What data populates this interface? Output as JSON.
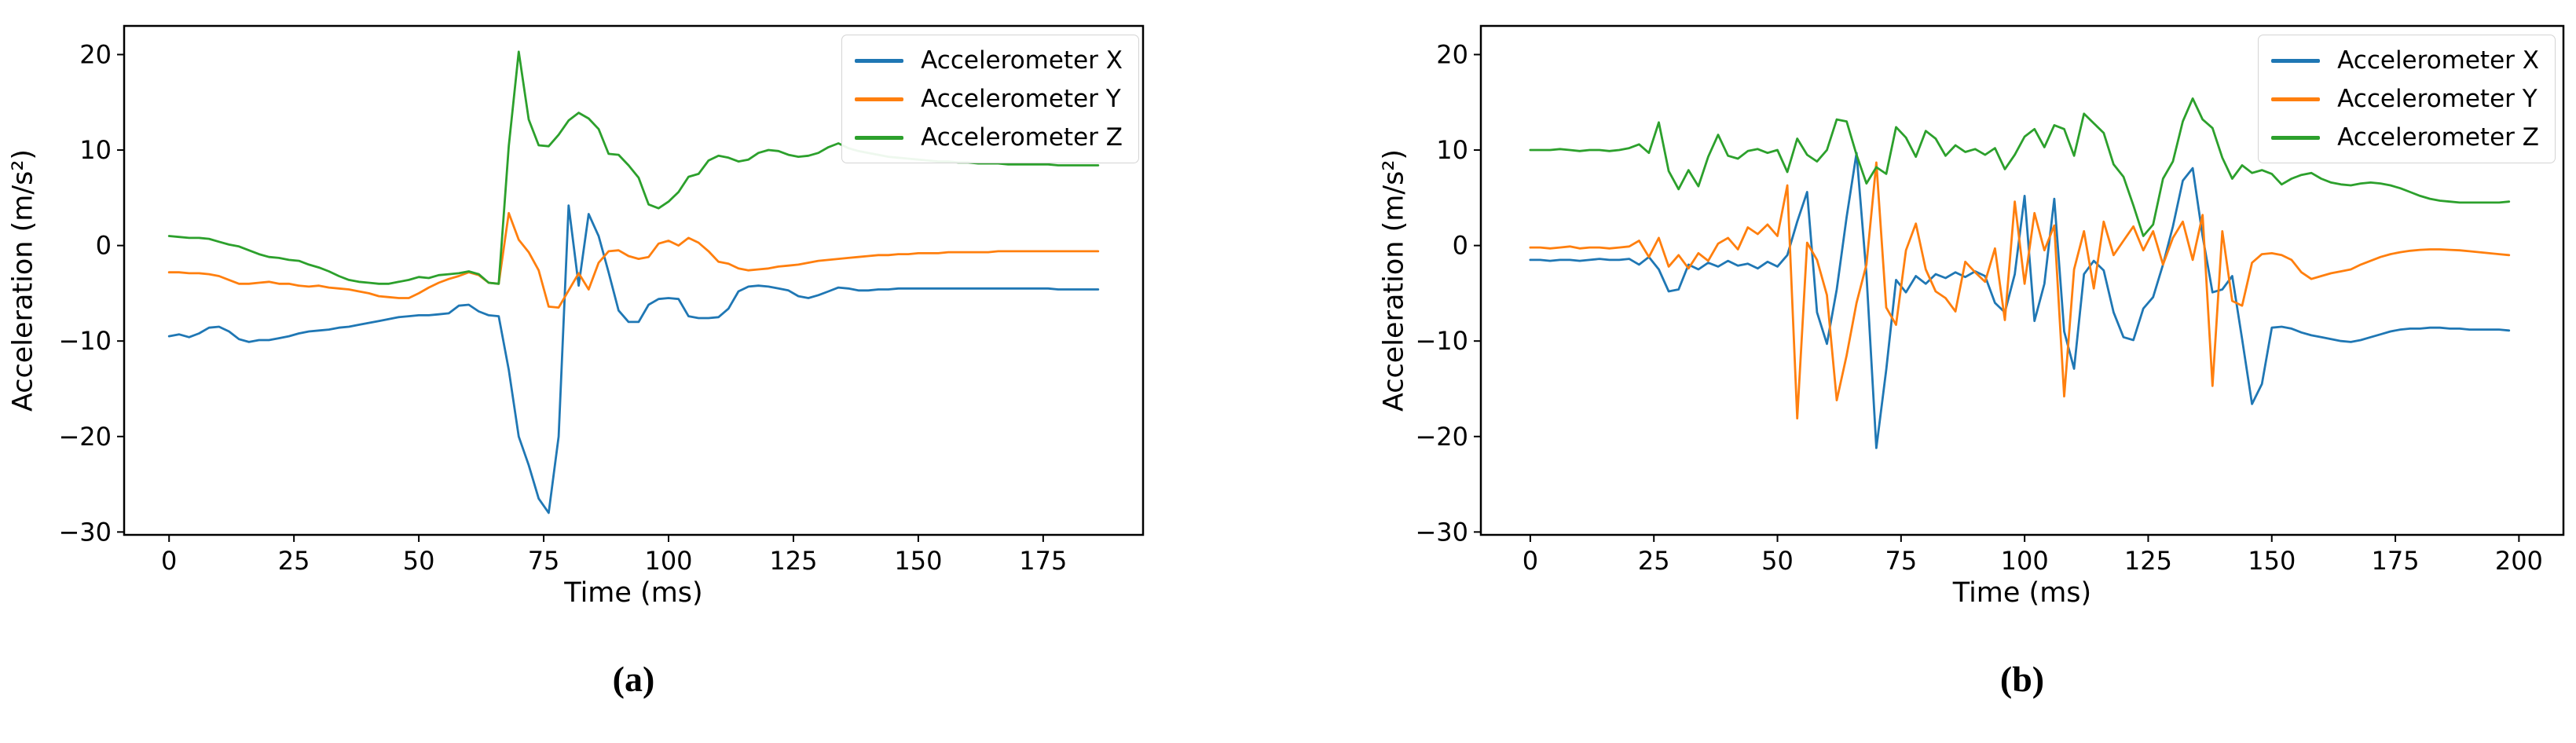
{
  "figure": {
    "background": "#ffffff",
    "text_color": "#000000",
    "series_colors": {
      "x": "#1f77b4",
      "y": "#ff7f0e",
      "z": "#2ca02c"
    }
  },
  "chart_data": [
    {
      "id": "a",
      "type": "line",
      "caption": "(a)",
      "xlabel": "Time (ms)",
      "ylabel": "Acceleration (m/s²)",
      "xlim": [
        -9,
        195
      ],
      "ylim": [
        -30.3,
        23
      ],
      "xticks": [
        0,
        25,
        50,
        75,
        100,
        125,
        150,
        175
      ],
      "yticks": [
        -30,
        -20,
        -10,
        0,
        10,
        20
      ],
      "grid": false,
      "legend_position": "upper right",
      "x": [
        0,
        2,
        4,
        6,
        8,
        10,
        12,
        14,
        16,
        18,
        20,
        22,
        24,
        26,
        28,
        30,
        32,
        34,
        36,
        38,
        40,
        42,
        44,
        46,
        48,
        50,
        52,
        54,
        56,
        58,
        60,
        62,
        64,
        66,
        68,
        70,
        72,
        74,
        76,
        78,
        80,
        82,
        84,
        86,
        88,
        90,
        92,
        94,
        96,
        98,
        100,
        102,
        104,
        106,
        108,
        110,
        112,
        114,
        116,
        118,
        120,
        122,
        124,
        126,
        128,
        130,
        132,
        134,
        136,
        138,
        140,
        142,
        144,
        146,
        148,
        150,
        152,
        154,
        156,
        158,
        160,
        162,
        164,
        166,
        168,
        170,
        172,
        174,
        176,
        178,
        180,
        182,
        184,
        186
      ],
      "series": [
        {
          "name": "Accelerometer X",
          "color": "#1f77b4",
          "values": [
            -9.5,
            -9.3,
            -9.6,
            -9.2,
            -8.6,
            -8.5,
            -9.0,
            -9.8,
            -10.1,
            -9.9,
            -9.9,
            -9.7,
            -9.5,
            -9.2,
            -9.0,
            -8.9,
            -8.8,
            -8.6,
            -8.5,
            -8.3,
            -8.1,
            -7.9,
            -7.7,
            -7.5,
            -7.4,
            -7.3,
            -7.3,
            -7.2,
            -7.1,
            -6.3,
            -6.2,
            -6.9,
            -7.3,
            -7.4,
            -13.0,
            -20.0,
            -23.0,
            -26.5,
            -28.0,
            -20.0,
            4.2,
            -4.2,
            3.3,
            1.0,
            -2.8,
            -6.8,
            -8.0,
            -8.0,
            -6.2,
            -5.6,
            -5.5,
            -5.6,
            -7.4,
            -7.6,
            -7.6,
            -7.5,
            -6.6,
            -4.8,
            -4.3,
            -4.2,
            -4.3,
            -4.5,
            -4.7,
            -5.3,
            -5.5,
            -5.2,
            -4.8,
            -4.4,
            -4.5,
            -4.7,
            -4.7,
            -4.6,
            -4.6,
            -4.5,
            -4.5,
            -4.5,
            -4.5,
            -4.5,
            -4.5,
            -4.5,
            -4.5,
            -4.5,
            -4.5,
            -4.5,
            -4.5,
            -4.5,
            -4.5,
            -4.5,
            -4.5,
            -4.6,
            -4.6,
            -4.6,
            -4.6,
            -4.6
          ]
        },
        {
          "name": "Accelerometer Y",
          "color": "#ff7f0e",
          "values": [
            -2.8,
            -2.8,
            -2.9,
            -2.9,
            -3.0,
            -3.2,
            -3.6,
            -4.0,
            -4.0,
            -3.9,
            -3.8,
            -4.0,
            -4.0,
            -4.2,
            -4.3,
            -4.2,
            -4.4,
            -4.5,
            -4.6,
            -4.8,
            -5.0,
            -5.3,
            -5.4,
            -5.5,
            -5.5,
            -5.0,
            -4.4,
            -3.9,
            -3.5,
            -3.2,
            -2.8,
            -3.1,
            -3.9,
            -4.0,
            3.4,
            0.6,
            -0.7,
            -2.6,
            -6.4,
            -6.5,
            -4.7,
            -2.9,
            -4.6,
            -1.8,
            -0.6,
            -0.5,
            -1.1,
            -1.4,
            -1.2,
            0.2,
            0.5,
            0.0,
            0.8,
            0.3,
            -0.6,
            -1.7,
            -1.9,
            -2.4,
            -2.6,
            -2.5,
            -2.4,
            -2.2,
            -2.1,
            -2.0,
            -1.8,
            -1.6,
            -1.5,
            -1.4,
            -1.3,
            -1.2,
            -1.1,
            -1.0,
            -1.0,
            -0.9,
            -0.9,
            -0.8,
            -0.8,
            -0.8,
            -0.7,
            -0.7,
            -0.7,
            -0.7,
            -0.7,
            -0.6,
            -0.6,
            -0.6,
            -0.6,
            -0.6,
            -0.6,
            -0.6,
            -0.6,
            -0.6,
            -0.6,
            -0.6
          ]
        },
        {
          "name": "Accelerometer Z",
          "color": "#2ca02c",
          "values": [
            1.0,
            0.9,
            0.8,
            0.8,
            0.7,
            0.4,
            0.1,
            -0.1,
            -0.5,
            -0.9,
            -1.2,
            -1.3,
            -1.5,
            -1.6,
            -2.0,
            -2.3,
            -2.7,
            -3.2,
            -3.6,
            -3.8,
            -3.9,
            -4.0,
            -4.0,
            -3.8,
            -3.6,
            -3.3,
            -3.4,
            -3.1,
            -3.0,
            -2.9,
            -2.7,
            -3.0,
            -3.9,
            -4.0,
            10.4,
            20.3,
            13.2,
            10.5,
            10.4,
            11.6,
            13.1,
            13.9,
            13.3,
            12.2,
            9.6,
            9.5,
            8.4,
            7.1,
            4.3,
            3.9,
            4.6,
            5.6,
            7.2,
            7.5,
            8.9,
            9.4,
            9.2,
            8.8,
            9.0,
            9.7,
            10.0,
            9.9,
            9.5,
            9.3,
            9.4,
            9.7,
            10.3,
            10.7,
            10.2,
            9.9,
            9.7,
            9.5,
            9.3,
            9.2,
            9.1,
            9.0,
            8.9,
            8.8,
            8.8,
            8.7,
            8.7,
            8.6,
            8.6,
            8.6,
            8.5,
            8.5,
            8.5,
            8.5,
            8.5,
            8.4,
            8.4,
            8.4,
            8.4,
            8.4
          ]
        }
      ]
    },
    {
      "id": "b",
      "type": "line",
      "caption": "(b)",
      "xlabel": "Time (ms)",
      "ylabel": "Acceleration (m/s²)",
      "xlim": [
        -10,
        209
      ],
      "ylim": [
        -30.3,
        23
      ],
      "xticks": [
        0,
        25,
        50,
        75,
        100,
        125,
        150,
        175,
        200
      ],
      "yticks": [
        -30,
        -20,
        -10,
        0,
        10,
        20
      ],
      "grid": false,
      "legend_position": "upper right",
      "x": [
        0,
        2,
        4,
        6,
        8,
        10,
        12,
        14,
        16,
        18,
        20,
        22,
        24,
        26,
        28,
        30,
        32,
        34,
        36,
        38,
        40,
        42,
        44,
        46,
        48,
        50,
        52,
        54,
        56,
        58,
        60,
        62,
        64,
        66,
        68,
        70,
        72,
        74,
        76,
        78,
        80,
        82,
        84,
        86,
        88,
        90,
        92,
        94,
        96,
        98,
        100,
        102,
        104,
        106,
        108,
        110,
        112,
        114,
        116,
        118,
        120,
        122,
        124,
        126,
        128,
        130,
        132,
        134,
        136,
        138,
        140,
        142,
        144,
        146,
        148,
        150,
        152,
        154,
        156,
        158,
        160,
        162,
        164,
        166,
        168,
        170,
        172,
        174,
        176,
        178,
        180,
        182,
        184,
        186,
        188,
        190,
        192,
        194,
        196,
        198
      ],
      "series": [
        {
          "name": "Accelerometer X",
          "color": "#1f77b4",
          "values": [
            -1.5,
            -1.5,
            -1.6,
            -1.5,
            -1.5,
            -1.6,
            -1.5,
            -1.4,
            -1.5,
            -1.5,
            -1.4,
            -2.0,
            -1.2,
            -2.5,
            -4.8,
            -4.6,
            -2.0,
            -2.5,
            -1.8,
            -2.2,
            -1.6,
            -2.1,
            -1.9,
            -2.4,
            -1.7,
            -2.2,
            -1.0,
            2.5,
            5.6,
            -7.0,
            -10.3,
            -4.6,
            3.0,
            9.7,
            -3.0,
            -21.2,
            -13.0,
            -3.6,
            -4.9,
            -3.2,
            -4.0,
            -3.0,
            -3.4,
            -2.8,
            -3.3,
            -2.7,
            -3.2,
            -6.0,
            -7.0,
            -3.0,
            5.2,
            -7.9,
            -4.0,
            4.9,
            -9.0,
            -12.9,
            -3.0,
            -1.6,
            -2.6,
            -7.0,
            -9.6,
            -9.9,
            -6.6,
            -5.4,
            -2.0,
            2.0,
            6.8,
            8.1,
            1.0,
            -4.9,
            -4.6,
            -3.2,
            -9.8,
            -16.6,
            -14.5,
            -8.6,
            -8.5,
            -8.7,
            -9.1,
            -9.4,
            -9.6,
            -9.8,
            -10.0,
            -10.1,
            -9.9,
            -9.6,
            -9.3,
            -9.0,
            -8.8,
            -8.7,
            -8.7,
            -8.6,
            -8.6,
            -8.7,
            -8.7,
            -8.8,
            -8.8,
            -8.8,
            -8.8,
            -8.9
          ]
        },
        {
          "name": "Accelerometer Y",
          "color": "#ff7f0e",
          "values": [
            -0.2,
            -0.2,
            -0.3,
            -0.2,
            -0.1,
            -0.3,
            -0.2,
            -0.2,
            -0.3,
            -0.2,
            -0.1,
            0.5,
            -1.2,
            0.8,
            -2.2,
            -1.0,
            -2.4,
            -0.8,
            -1.6,
            0.2,
            0.8,
            -0.4,
            1.9,
            1.2,
            2.2,
            1.0,
            6.3,
            -18.1,
            0.3,
            -1.5,
            -5.2,
            -16.2,
            -11.5,
            -6.0,
            -2.0,
            8.7,
            -6.5,
            -8.3,
            -0.5,
            2.3,
            -2.5,
            -4.8,
            -5.5,
            -6.9,
            -1.7,
            -2.8,
            -3.8,
            -0.3,
            -7.8,
            4.6,
            -4.0,
            3.4,
            -0.5,
            2.1,
            -15.8,
            -2.5,
            1.5,
            -4.5,
            2.5,
            -1.0,
            0.5,
            2.0,
            -0.5,
            1.5,
            -2.0,
            0.8,
            2.5,
            -1.5,
            3.2,
            -14.7,
            1.5,
            -5.8,
            -6.3,
            -1.8,
            -0.9,
            -0.8,
            -1.0,
            -1.5,
            -2.8,
            -3.5,
            -3.2,
            -2.9,
            -2.7,
            -2.5,
            -2.0,
            -1.6,
            -1.2,
            -0.9,
            -0.7,
            -0.55,
            -0.45,
            -0.4,
            -0.4,
            -0.45,
            -0.5,
            -0.6,
            -0.7,
            -0.8,
            -0.9,
            -1.0
          ]
        },
        {
          "name": "Accelerometer Z",
          "color": "#2ca02c",
          "values": [
            10.0,
            10.0,
            10.0,
            10.1,
            10.0,
            9.9,
            10.0,
            10.0,
            9.9,
            10.0,
            10.2,
            10.6,
            9.7,
            12.9,
            7.8,
            5.9,
            7.9,
            6.2,
            9.3,
            11.6,
            9.4,
            9.1,
            9.9,
            10.1,
            9.7,
            10.0,
            7.7,
            11.2,
            9.5,
            8.8,
            10.0,
            13.2,
            13.0,
            9.5,
            6.5,
            8.2,
            7.5,
            12.4,
            11.3,
            9.3,
            12.0,
            11.2,
            9.4,
            10.5,
            9.8,
            10.1,
            9.5,
            10.2,
            8.0,
            9.5,
            11.4,
            12.2,
            10.3,
            12.6,
            12.2,
            9.4,
            13.8,
            12.8,
            11.8,
            8.5,
            7.2,
            4.2,
            1.0,
            2.2,
            7.0,
            8.8,
            13.0,
            15.4,
            13.2,
            12.3,
            9.2,
            7.0,
            8.4,
            7.6,
            7.9,
            7.5,
            6.4,
            7.0,
            7.4,
            7.6,
            7.0,
            6.6,
            6.4,
            6.3,
            6.5,
            6.6,
            6.5,
            6.3,
            6.0,
            5.6,
            5.2,
            4.9,
            4.7,
            4.6,
            4.5,
            4.5,
            4.5,
            4.5,
            4.5,
            4.6
          ]
        }
      ]
    }
  ]
}
